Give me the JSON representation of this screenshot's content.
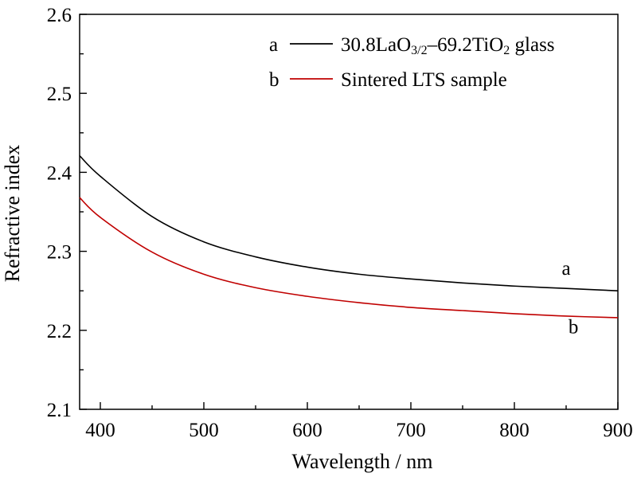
{
  "chart_data": {
    "type": "line",
    "title": "",
    "xlabel": "Wavelength / nm",
    "ylabel": "Refractive index",
    "xlim": [
      380,
      900
    ],
    "ylim": [
      2.1,
      2.6
    ],
    "xticks": [
      "400",
      "500",
      "600",
      "700",
      "800",
      "900"
    ],
    "yticks": [
      "2.1",
      "2.2",
      "2.3",
      "2.4",
      "2.5",
      "2.6"
    ],
    "grid": false,
    "legend_position": "top-right",
    "x": [
      380,
      400,
      450,
      500,
      550,
      600,
      650,
      700,
      750,
      800,
      850,
      900
    ],
    "series": [
      {
        "id": "a",
        "color": "#000000",
        "values": [
          2.421,
          2.395,
          2.344,
          2.312,
          2.293,
          2.28,
          2.271,
          2.265,
          2.26,
          2.256,
          2.253,
          2.25
        ]
      },
      {
        "id": "b",
        "color": "#c00000",
        "values": [
          2.368,
          2.343,
          2.299,
          2.271,
          2.254,
          2.243,
          2.235,
          2.229,
          2.225,
          2.221,
          2.218,
          2.216
        ]
      }
    ],
    "legend": [
      {
        "letter": "a",
        "color": "#000000",
        "parts": [
          {
            "text": "30.8LaO",
            "sub": false
          },
          {
            "text": "3/2",
            "sub": true
          },
          {
            "text": "–69.2TiO",
            "sub": false
          },
          {
            "text": "2",
            "sub": true
          },
          {
            "text": " glass",
            "sub": false
          }
        ]
      },
      {
        "letter": "b",
        "color": "#c00000",
        "parts": [
          {
            "text": "Sintered LTS sample",
            "sub": false
          }
        ]
      }
    ],
    "curve_labels": [
      {
        "text": "a",
        "x": 850,
        "y": 2.2705
      },
      {
        "text": "b",
        "x": 857,
        "y": 2.1965
      }
    ]
  }
}
